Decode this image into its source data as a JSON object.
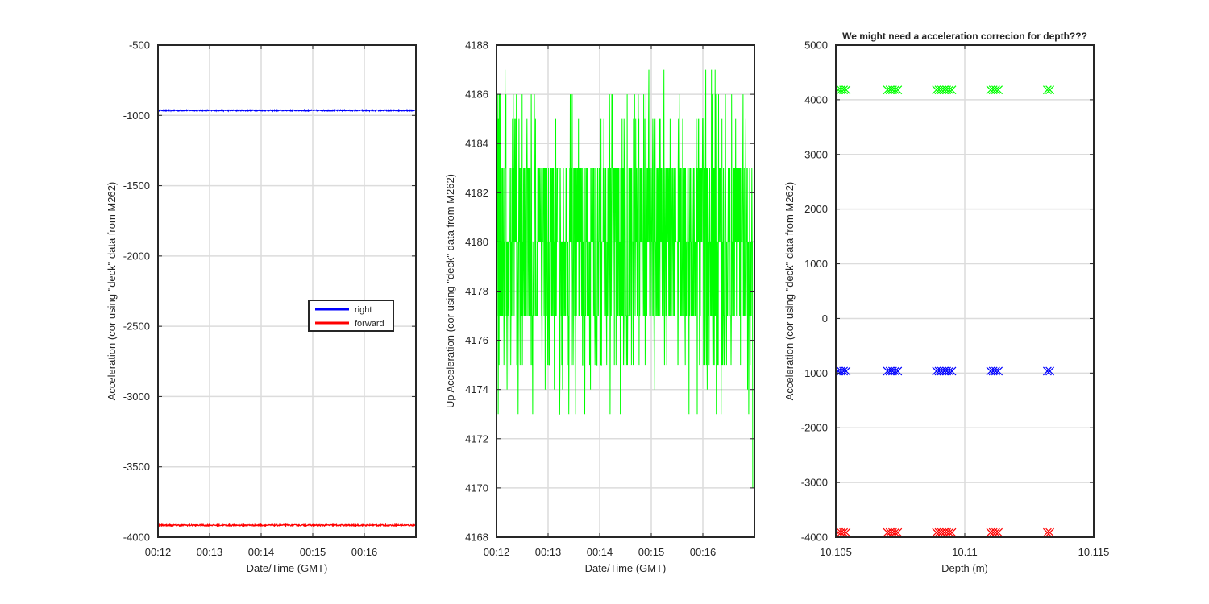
{
  "chart_data": [
    {
      "type": "line",
      "title": "",
      "xlabel": "Date/Time (GMT)",
      "ylabel": "Acceleration (cor using \"deck\" data from M262)",
      "xlim": [
        "00:12",
        "00:17"
      ],
      "ylim": [
        -4000,
        -500
      ],
      "x_ticks": [
        "00:12",
        "00:13",
        "00:14",
        "00:15",
        "00:16"
      ],
      "y_ticks": [
        -500,
        -1000,
        -1500,
        -2000,
        -2500,
        -3000,
        -3500,
        -4000
      ],
      "grid": true,
      "legend": {
        "placement": "center-right",
        "entries": [
          "right",
          "forward"
        ]
      },
      "series": [
        {
          "name": "right",
          "color": "#0000ff",
          "level": -965,
          "noise": 4,
          "x_range": [
            "00:12",
            "00:17"
          ]
        },
        {
          "name": "forward",
          "color": "#ff0000",
          "level": -3915,
          "noise": 5,
          "x_range": [
            "00:12",
            "00:17"
          ]
        }
      ]
    },
    {
      "type": "line",
      "title": "",
      "xlabel": "Date/Time (GMT)",
      "ylabel": "Up Acceleration (cor using \"deck\" data from M262)",
      "xlim": [
        "00:12",
        "00:17"
      ],
      "ylim": [
        4168,
        4188
      ],
      "x_ticks": [
        "00:12",
        "00:13",
        "00:14",
        "00:15",
        "00:16"
      ],
      "y_ticks": [
        4188,
        4186,
        4184,
        4182,
        4180,
        4178,
        4176,
        4174,
        4172,
        4170,
        4168
      ],
      "grid": true,
      "series": [
        {
          "color": "#00ff00",
          "x_range": [
            "00:12",
            "00:16:58"
          ],
          "discrete_levels": [
            4170,
            4173,
            4174,
            4175,
            4177,
            4180,
            4183,
            4185,
            4186,
            4187
          ],
          "min": 4170,
          "max": 4187
        }
      ]
    },
    {
      "type": "scatter",
      "title": "We might need a acceleration correcion for depth???",
      "xlabel": "Depth (m)",
      "ylabel": "Acceleration (cor using \"deck\" data from M262)",
      "xlim": [
        10.105,
        10.115
      ],
      "ylim": [
        -4000,
        5000
      ],
      "x_ticks": [
        10.105,
        10.11,
        10.115
      ],
      "y_ticks": [
        5000,
        4000,
        3000,
        2000,
        1000,
        0,
        -1000,
        -2000,
        -3000,
        -4000
      ],
      "grid": true,
      "marker": "x",
      "series": [
        {
          "color": "#00ff00",
          "x": [
            10.1051,
            10.1052,
            10.1053,
            10.1054,
            10.107,
            10.1071,
            10.1072,
            10.1073,
            10.1074,
            10.1089,
            10.109,
            10.1091,
            10.1092,
            10.1093,
            10.1094,
            10.1095,
            10.111,
            10.1111,
            10.1112,
            10.1113,
            10.1132,
            10.1133
          ],
          "y": 4180
        },
        {
          "color": "#0000ff",
          "x": [
            10.1051,
            10.1052,
            10.1053,
            10.1054,
            10.107,
            10.1071,
            10.1072,
            10.1073,
            10.1074,
            10.1089,
            10.109,
            10.1091,
            10.1092,
            10.1093,
            10.1094,
            10.1095,
            10.111,
            10.1111,
            10.1112,
            10.1113,
            10.1132,
            10.1133
          ],
          "y": -965
        },
        {
          "color": "#ff0000",
          "x": [
            10.1051,
            10.1052,
            10.1053,
            10.1054,
            10.107,
            10.1071,
            10.1072,
            10.1073,
            10.1074,
            10.1089,
            10.109,
            10.1091,
            10.1092,
            10.1093,
            10.1094,
            10.1095,
            10.111,
            10.1111,
            10.1112,
            10.1113,
            10.1132,
            10.1133
          ],
          "y": -3915
        }
      ]
    }
  ]
}
